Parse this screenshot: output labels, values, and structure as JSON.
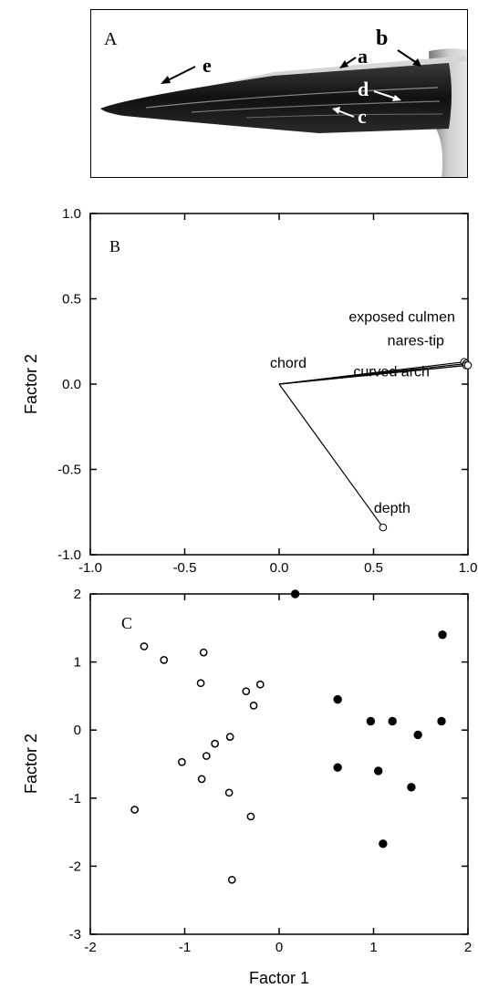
{
  "panel_a": {
    "letter": "A",
    "labels": {
      "a": "a",
      "b": "b",
      "c": "c",
      "d": "d",
      "e": "e"
    }
  },
  "chart_data": [
    {
      "type": "loading_vectors",
      "panel_letter": "B",
      "xlabel": "",
      "ylabel": "Factor 2",
      "xlim": [
        -1.0,
        1.0
      ],
      "ylim": [
        -1.0,
        1.0
      ],
      "xticks": [
        -1.0,
        -0.5,
        0.0,
        0.5,
        1.0
      ],
      "xtick_labels": [
        "-1.0",
        "-0.5",
        "0.0",
        "0.5",
        "1.0"
      ],
      "yticks": [
        -1.0,
        -0.5,
        0.0,
        0.5,
        1.0
      ],
      "ytick_labels": [
        "-1.0",
        "-0.5",
        "0.0",
        "0.5",
        "1.0"
      ],
      "vectors": [
        {
          "label": "exposed culmen",
          "x": 0.98,
          "y": 0.13
        },
        {
          "label": "nares-tip",
          "x": 0.99,
          "y": 0.12
        },
        {
          "label": "curved arch",
          "x": 0.99,
          "y": 0.11
        },
        {
          "label": "chord",
          "x": 1.0,
          "y": 0.11
        },
        {
          "label": "depth",
          "x": 0.55,
          "y": -0.84
        }
      ]
    },
    {
      "type": "scatter",
      "panel_letter": "C",
      "xlabel": "Factor 1",
      "ylabel": "Factor 2",
      "xlim": [
        -2,
        2
      ],
      "ylim": [
        -3,
        2
      ],
      "xticks": [
        -2,
        -1,
        0,
        1,
        2
      ],
      "xtick_labels": [
        "-2",
        "-1",
        "0",
        "1",
        "2"
      ],
      "yticks": [
        -3,
        -2,
        -1,
        0,
        1,
        2
      ],
      "ytick_labels": [
        "-3",
        "-2",
        "-1",
        "0",
        "1",
        "2"
      ],
      "series": [
        {
          "marker": "open",
          "x": [
            -1.43,
            -1.22,
            -0.8,
            -0.83,
            -0.35,
            -0.2,
            -0.27,
            -0.52,
            -0.68,
            -0.77,
            -1.03,
            -0.82,
            -0.53,
            -0.3,
            -1.53,
            -0.5
          ],
          "y": [
            1.23,
            1.03,
            1.14,
            0.69,
            0.57,
            0.67,
            0.36,
            -0.1,
            -0.2,
            -0.38,
            -0.47,
            -0.72,
            -0.92,
            -1.27,
            -1.17,
            -2.2
          ]
        },
        {
          "marker": "filled",
          "x": [
            0.17,
            1.73,
            0.62,
            0.97,
            1.2,
            1.47,
            1.72,
            0.62,
            1.05,
            1.4,
            1.1
          ],
          "y": [
            2.0,
            1.4,
            0.45,
            0.13,
            0.13,
            -0.07,
            0.13,
            -0.55,
            -0.6,
            -0.84,
            -1.67
          ]
        }
      ]
    }
  ]
}
